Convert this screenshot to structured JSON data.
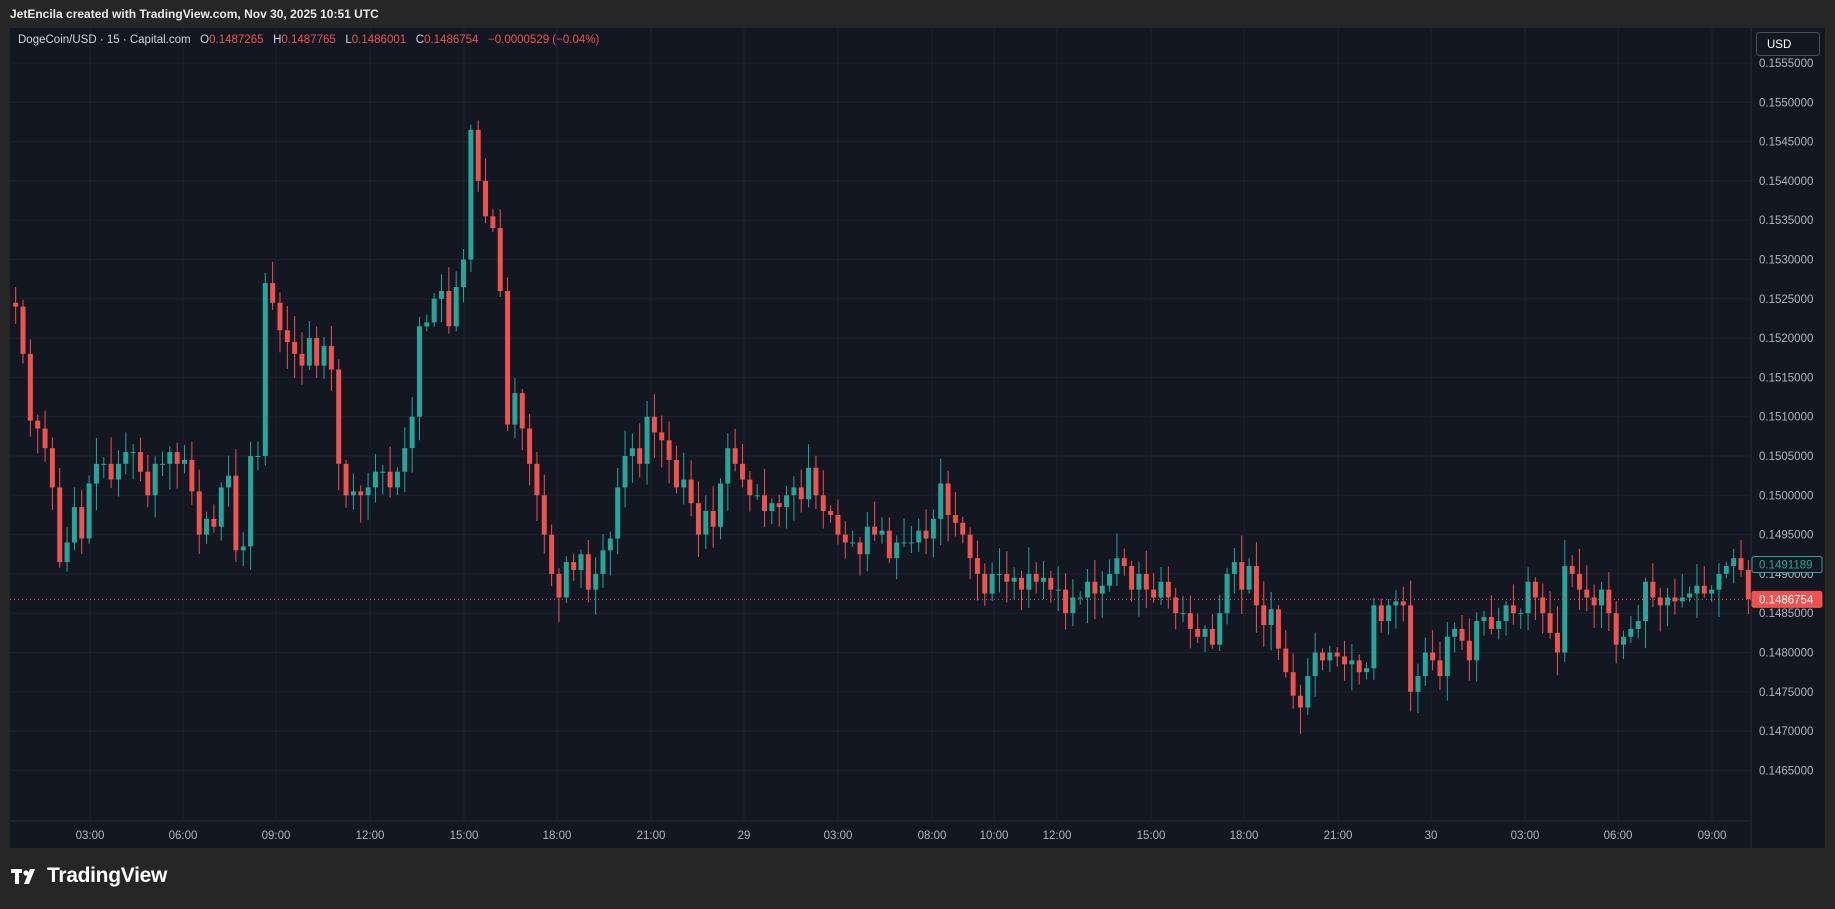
{
  "header": {
    "attribution": "JetEncila created with TradingView.com, Nov 30, 2025 10:51 UTC"
  },
  "legend": {
    "symbol": "DogeCoin/USD · 15 · Capital.com",
    "o_label": "O",
    "o_value": "0.1487265",
    "h_label": "H",
    "h_value": "0.1487765",
    "l_label": "L",
    "l_value": "0.1486001",
    "c_label": "C",
    "c_value": "0.1486754",
    "change": "−0.0000529 (−0.04%)"
  },
  "currency": "USD",
  "brand": {
    "name": "TradingView",
    "logo_icon": "tradingview-logo-icon"
  },
  "colors": {
    "up": "#26a69a",
    "down": "#ef5350",
    "background": "#131722",
    "grid": "#1e2230",
    "text": "#b2b5be"
  },
  "chart_data": {
    "type": "candlestick",
    "title": "DogeCoin/USD · 15 · Capital.com",
    "ylabel": "USD",
    "ylim": [
      0.14625,
      0.1557
    ],
    "yticks": [
      "0.1465000",
      "0.1470000",
      "0.1475000",
      "0.1480000",
      "0.1485000",
      "0.1490000",
      "0.1495000",
      "0.1500000",
      "0.1505000",
      "0.1510000",
      "0.1515000",
      "0.1520000",
      "0.1525000",
      "0.1530000",
      "0.1535000",
      "0.1540000",
      "0.1545000",
      "0.1550000",
      "0.1555000"
    ],
    "xticks": [
      "03:00",
      "06:00",
      "09:00",
      "12:00",
      "15:00",
      "18:00",
      "21:00",
      "29",
      "03:00",
      "08:00",
      "10:00",
      "12:00",
      "15:00",
      "18:00",
      "21:00",
      "30",
      "03:00",
      "06:00",
      "09:00"
    ],
    "grid": true,
    "price_labels": [
      {
        "value": "0.1491189",
        "type": "previous-close",
        "color": "#26a69a"
      },
      {
        "value": "0.1486754",
        "type": "last",
        "color": "#ef5350"
      }
    ],
    "series": [
      {
        "name": "DogeCoin/USD",
        "close": [
          0.1524,
          0.1518,
          0.15095,
          0.15085,
          0.1506,
          0.1501,
          0.14915,
          0.1494,
          0.14985,
          0.14945,
          0.15015,
          0.1504,
          0.1504,
          0.1502,
          0.1504,
          0.15055,
          0.15055,
          0.1503,
          0.15,
          0.1504,
          0.1504,
          0.15055,
          0.1504,
          0.15045,
          0.15005,
          0.1495,
          0.1497,
          0.1496,
          0.1501,
          0.15025,
          0.1493,
          0.14935,
          0.1505,
          0.1505,
          0.1527,
          0.15245,
          0.1521,
          0.15195,
          0.1518,
          0.15165,
          0.152,
          0.15165,
          0.1519,
          0.1516,
          0.1504,
          0.15,
          0.15005,
          0.15,
          0.1501,
          0.1503,
          0.1503,
          0.1501,
          0.1503,
          0.1506,
          0.151,
          0.15215,
          0.1522,
          0.1525,
          0.1526,
          0.15215,
          0.15265,
          0.153,
          0.15465,
          0.154,
          0.15355,
          0.1534,
          0.1526,
          0.1509,
          0.1513,
          0.15085,
          0.1504,
          0.15,
          0.1495,
          0.149,
          0.1487,
          0.14915,
          0.14905,
          0.14925,
          0.1488,
          0.149,
          0.1493,
          0.14945,
          0.1501,
          0.1505,
          0.1506,
          0.1504,
          0.151,
          0.1508,
          0.1507,
          0.15045,
          0.1501,
          0.1502,
          0.1499,
          0.1495,
          0.1498,
          0.1496,
          0.15015,
          0.1506,
          0.1504,
          0.1502,
          0.15,
          0.15,
          0.1498,
          0.1499,
          0.14985,
          0.15,
          0.1501,
          0.14995,
          0.15035,
          0.15,
          0.1498,
          0.14975,
          0.1495,
          0.1494,
          0.1494,
          0.14925,
          0.1496,
          0.1495,
          0.14955,
          0.1492,
          0.1494,
          0.1494,
          0.1494,
          0.14955,
          0.14945,
          0.1497,
          0.15015,
          0.14975,
          0.14965,
          0.1495,
          0.1492,
          0.149,
          0.14875,
          0.149,
          0.149,
          0.1489,
          0.14895,
          0.1488,
          0.149,
          0.1489,
          0.14895,
          0.1488,
          0.1488,
          0.1485,
          0.1487,
          0.1487,
          0.1489,
          0.14875,
          0.14885,
          0.149,
          0.1492,
          0.1491,
          0.1488,
          0.149,
          0.1488,
          0.1487,
          0.1489,
          0.1487,
          0.1485,
          0.1485,
          0.1483,
          0.1482,
          0.1483,
          0.1481,
          0.1485,
          0.149,
          0.14915,
          0.1488,
          0.1491,
          0.1486,
          0.14835,
          0.14855,
          0.14805,
          0.14775,
          0.14745,
          0.1473,
          0.1477,
          0.148,
          0.1479,
          0.148,
          0.14795,
          0.14785,
          0.1479,
          0.14775,
          0.1478,
          0.1486,
          0.1484,
          0.1486,
          0.14865,
          0.1486,
          0.1475,
          0.1477,
          0.148,
          0.1479,
          0.1477,
          0.1482,
          0.1483,
          0.14815,
          0.1479,
          0.1484,
          0.14845,
          0.1483,
          0.1484,
          0.1486,
          0.1485,
          0.1485,
          0.1489,
          0.1487,
          0.1485,
          0.14825,
          0.148,
          0.1491,
          0.149,
          0.1488,
          0.1487,
          0.1486,
          0.1488,
          0.1485,
          0.1481,
          0.1482,
          0.1483,
          0.1484,
          0.1489,
          0.1487,
          0.1486,
          0.1487,
          0.14865,
          0.1487,
          0.14875,
          0.14885,
          0.14875,
          0.1488,
          0.149,
          0.1491,
          0.1492,
          0.14905,
          0.14868
        ]
      }
    ]
  }
}
